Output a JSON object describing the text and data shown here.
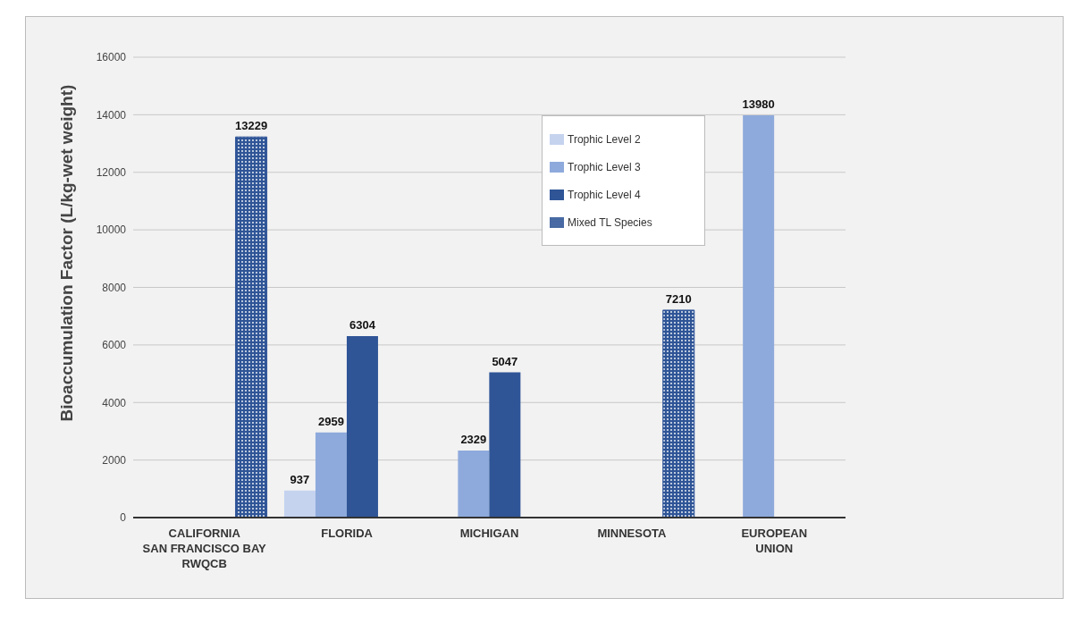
{
  "chart_data": {
    "type": "bar",
    "ylabel": "Bioaccumulation Factor (L/kg-wet weight)",
    "categories": [
      "CALIFORNIA\nSAN FRANCISCO BAY\nRWQCB",
      "FLORIDA",
      "MICHIGAN",
      "MINNESOTA",
      "EUROPEAN\nUNION"
    ],
    "series": [
      {
        "name": "Trophic Level 2",
        "color": "#c5d3ef",
        "values": [
          null,
          937,
          null,
          null,
          null
        ]
      },
      {
        "name": "Trophic Level 3",
        "color": "#8eaadc",
        "values": [
          null,
          2959,
          2329,
          null,
          13980
        ]
      },
      {
        "name": "Trophic Level 4",
        "color": "#2f5597",
        "values": [
          null,
          6304,
          5047,
          null,
          null
        ]
      },
      {
        "name": "Mixed TL Species",
        "color": "#2f5597",
        "values": [
          13229,
          null,
          null,
          7210,
          null
        ]
      }
    ],
    "ylim": [
      0,
      16000
    ],
    "yticks": [
      0,
      2000,
      4000,
      6000,
      8000,
      10000,
      12000,
      14000,
      16000
    ],
    "grid": "y",
    "legend": "top right",
    "data_labels": true
  }
}
